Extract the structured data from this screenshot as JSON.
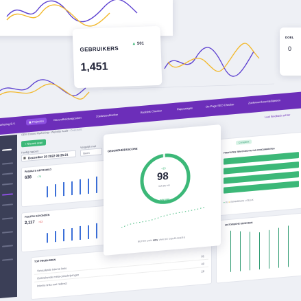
{
  "top_card": {
    "title": "GEBRUIKERS",
    "delta": "501",
    "value": "1,451"
  },
  "brand": "arketing B.V.",
  "nav": {
    "items": [
      "Projecten",
      "Gezondheidsrapporten",
      "Zoekwoordtracker",
      "Backlink Checker",
      "Rapportages",
      "On-Page SEO Checker",
      "Zoekwoordvoorstel/ideeën"
    ],
    "upgrade": "Laat feedback achter"
  },
  "breadcrumb": [
    "SEM Online Marketing",
    "Website Audit",
    "Overzicht"
  ],
  "new_scan_label": "Nieuwe scan",
  "period_label": "Huidig rapport",
  "period_value": "December 20 2022 09:35:21",
  "compare_label": "Vergelijk met",
  "compare_value": "Geen",
  "pages_crawled": {
    "label": "PAGINA'S GECRAWLD",
    "value": "638",
    "delta": "+78"
  },
  "errors": {
    "label": "FOUTEN GEVONDEN",
    "value": "2,117",
    "delta": "+33"
  },
  "top_issues": {
    "label": "TOP PROBLEMEN",
    "rows": [
      {
        "name": "Verouderde interne links",
        "count": "81"
      },
      {
        "name": "Ontbrekende meta-omschrijvingen",
        "count": "40"
      },
      {
        "name": "Interne links met redirect",
        "count": "28"
      }
    ]
  },
  "health": {
    "label": "GEZONDHEIDSSCORE",
    "delta": "+15",
    "score": "98",
    "out_of": "VAN DE 100",
    "verdict": "WAUW!",
    "footer_pre": "BETER DAN",
    "footer_pct": "98%",
    "footer_post": "VAN DE GEBRUIKERS"
  },
  "right_panel": {
    "tag": "Compleet",
    "title": "PRESTATIES TEN OPZICHTE VAN CONCURRENTEN",
    "legend": [
      "JIJ",
      "GEMIDDELDE",
      "GELIJK"
    ],
    "history_label": "HISTORISCHE GEGEVENS"
  },
  "right_card_label": "DOEL",
  "right_card_value": "0",
  "colors": {
    "purple": "#6c2eb9",
    "green": "#3cb878",
    "blue": "#3b6fd8",
    "yellow": "#f2b82a",
    "dark": "#3b3f57"
  }
}
